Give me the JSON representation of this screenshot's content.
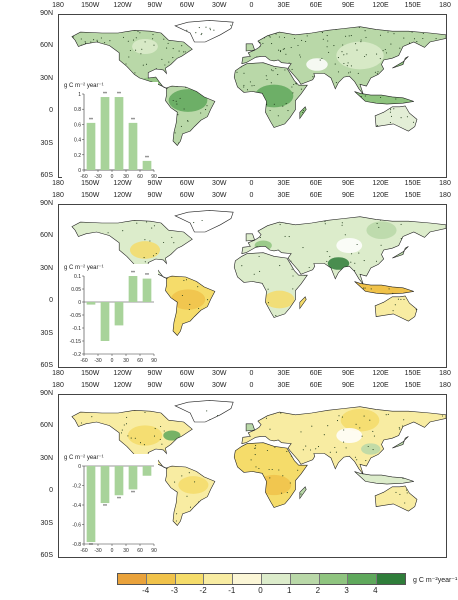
{
  "lon_labels": [
    "180",
    "150W",
    "120W",
    "90W",
    "60W",
    "30W",
    "0",
    "30E",
    "60E",
    "90E",
    "120E",
    "150E",
    "180"
  ],
  "lat_labels": [
    "90N",
    "60N",
    "30N",
    "0",
    "30S",
    "60S"
  ],
  "unit_label": "g C m⁻² year⁻¹",
  "colors": {
    "land_green": "#b9d8a8",
    "stipple": "#1f3a1a",
    "coast": "#222222",
    "bar": "#a8d39a"
  },
  "colorbar": {
    "colors": [
      "#e9a23b",
      "#f0c24a",
      "#f5dc6a",
      "#f8eca2",
      "#fbf6d6",
      "#dceccb",
      "#b9d8a8",
      "#8fc47f",
      "#5fa85c",
      "#2f7d3a"
    ],
    "tick_labels": [
      "-4",
      "-3",
      "-2",
      "-1",
      "0",
      "1",
      "2",
      "3",
      "4"
    ],
    "unit": "g C m⁻²year⁻¹"
  },
  "insets": [
    {
      "unit": "g C m⁻² year⁻¹",
      "y_ticks": [
        "1",
        "0.8",
        "0.6",
        "0.4",
        "0.2",
        "0"
      ],
      "x_ticks": [
        "-60",
        "-30",
        "0",
        "30",
        "60",
        "90"
      ],
      "chart_data": {
        "type": "bar",
        "categories": [
          "-45",
          "-15",
          "15",
          "45",
          "75"
        ],
        "values": [
          0.62,
          0.96,
          0.96,
          0.62,
          0.12
        ],
        "ylim": [
          0,
          1
        ],
        "xlim": [
          -60,
          90
        ],
        "annotations": [
          "**",
          "**",
          "**",
          "**",
          "**"
        ]
      }
    },
    {
      "unit": "g C m⁻² year⁻¹",
      "y_ticks": [
        "0.1",
        "0.05",
        "0",
        "-0.05",
        "-0.1",
        "-0.15",
        "-0.2"
      ],
      "x_ticks": [
        "-60",
        "-30",
        "0",
        "30",
        "60",
        "90"
      ],
      "chart_data": {
        "type": "bar",
        "categories": [
          "-45",
          "-15",
          "15",
          "45",
          "75"
        ],
        "values": [
          -0.01,
          -0.15,
          -0.09,
          0.1,
          0.09
        ],
        "ylim": [
          -0.2,
          0.1
        ],
        "xlim": [
          -60,
          90
        ],
        "annotations": [
          "",
          "",
          "",
          "**",
          "**"
        ]
      }
    },
    {
      "unit": "g C m⁻² year⁻¹",
      "y_ticks": [
        "0",
        "-0.2",
        "-0.4",
        "-0.6",
        "-0.8"
      ],
      "x_ticks": [
        "-60",
        "-30",
        "0",
        "30",
        "60",
        "90"
      ],
      "chart_data": {
        "type": "bar",
        "categories": [
          "-45",
          "-15",
          "15",
          "45",
          "75"
        ],
        "values": [
          -0.78,
          -0.38,
          -0.3,
          -0.24,
          -0.1
        ],
        "ylim": [
          -0.8,
          0
        ],
        "xlim": [
          -60,
          90
        ],
        "annotations": [
          "**",
          "**",
          "**",
          "**",
          ""
        ]
      }
    }
  ]
}
